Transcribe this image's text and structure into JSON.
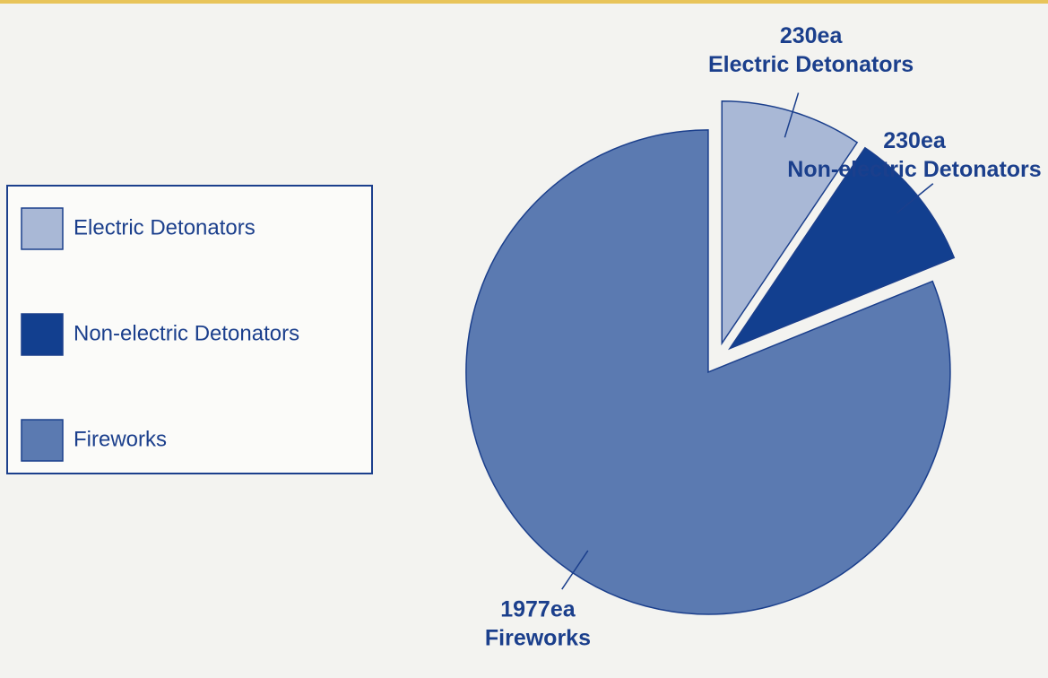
{
  "chart_data": {
    "type": "pie",
    "categories": [
      "Electric Detonators",
      "Non-electric Detonators",
      "Fireworks"
    ],
    "values": [
      230,
      230,
      1977
    ],
    "value_labels": [
      "230ea",
      "230ea",
      "1977ea"
    ],
    "colors": [
      "#a9b8d6",
      "#123f8f",
      "#5b7ab1"
    ],
    "legend": "left"
  }
}
